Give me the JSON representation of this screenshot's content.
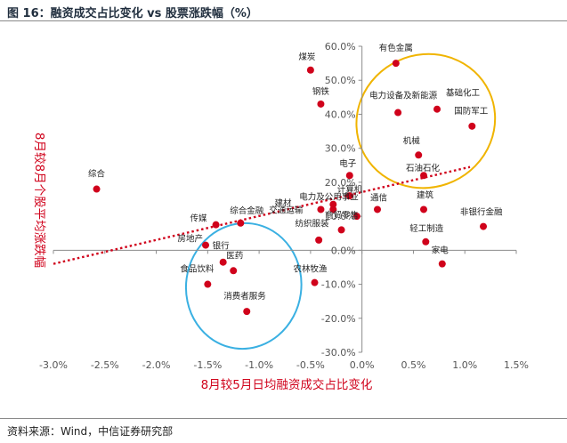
{
  "figure": {
    "title": "图 16：融资成交占比变化 vs 股票涨跌幅（%）",
    "source": "资料来源：Wind，中信证券研究部"
  },
  "chart_data": {
    "type": "scatter",
    "title": "",
    "xlabel": "8月较5月日均融资成交占比变化",
    "ylabel": "8月较8月个股平均涨跌幅",
    "xlim": [
      -3.0,
      1.5
    ],
    "ylim": [
      -30.0,
      60.0
    ],
    "x_ticks": [
      "-3.0%",
      "-2.5%",
      "-2.0%",
      "-1.5%",
      "-1.0%",
      "-0.5%",
      "0.0%",
      "0.5%",
      "1.0%",
      "1.5%"
    ],
    "y_ticks": [
      "60.0%",
      "50.0%",
      "40.0%",
      "30.0%",
      "20.0%",
      "10.0%",
      "0.0%",
      "-10.0%",
      "-20.0%",
      "-30.0%"
    ],
    "point_color": "#d0021b",
    "trendline": {
      "style": "dotted",
      "color": "#d0021b",
      "x": [
        -3.0,
        1.05
      ],
      "y": [
        -4.0,
        24.5
      ]
    },
    "highlights": [
      {
        "name": "upper-right-group",
        "color": "#f0b400",
        "cx": 0.62,
        "cy": 38.0,
        "rx": 0.68,
        "ry": 19.5,
        "angle": -25
      },
      {
        "name": "lower-left-group",
        "color": "#3ab0e2",
        "cx": -1.15,
        "cy": -10.5,
        "rx": 0.56,
        "ry": 18.5,
        "angle": 8
      }
    ],
    "points": [
      {
        "label": "有色金属",
        "x": 0.33,
        "y": 55.0
      },
      {
        "label": "煤炭",
        "x": -0.5,
        "y": 53.0
      },
      {
        "label": "钢铁",
        "x": -0.4,
        "y": 43.0
      },
      {
        "label": "电力设备及新能源",
        "x": 0.35,
        "y": 40.5
      },
      {
        "label": "基础化工",
        "x": 0.73,
        "y": 41.5
      },
      {
        "label": "国防军工",
        "x": 1.07,
        "y": 36.5
      },
      {
        "label": "机械",
        "x": 0.55,
        "y": 28.0
      },
      {
        "label": "石油石化",
        "x": 0.6,
        "y": 22.0
      },
      {
        "label": "电子",
        "x": -0.12,
        "y": 22.0
      },
      {
        "label": "综合",
        "x": -2.58,
        "y": 18.0
      },
      {
        "label": "计算机",
        "x": -0.12,
        "y": 16.0
      },
      {
        "label": "建材",
        "x": -0.4,
        "y": 12.0
      },
      {
        "label": "电力及公用事业",
        "x": -0.28,
        "y": 13.5
      },
      {
        "label": "传媒",
        "x": -1.42,
        "y": 7.5
      },
      {
        "label": "综合金融",
        "x": -1.18,
        "y": 8.0
      },
      {
        "label": "房地产",
        "x": -1.52,
        "y": 1.5
      },
      {
        "label": "交通运输",
        "x": -0.28,
        "y": 12.0
      },
      {
        "label": "商贸零售",
        "x": -0.05,
        "y": 10.0
      },
      {
        "label": "纺织服装",
        "x": -0.2,
        "y": 6.0
      },
      {
        "label": "通信",
        "x": 0.15,
        "y": 12.0
      },
      {
        "label": "建筑",
        "x": 0.6,
        "y": 12.0
      },
      {
        "label": "非银行金融",
        "x": 1.18,
        "y": 7.0
      },
      {
        "label": "轻工制造",
        "x": 0.62,
        "y": 2.5
      },
      {
        "label": "家电",
        "x": 0.78,
        "y": -4.0
      },
      {
        "label": "银行",
        "x": -1.35,
        "y": -3.5
      },
      {
        "label": "医药",
        "x": -1.25,
        "y": -6.0
      },
      {
        "label": "食品饮料",
        "x": -1.5,
        "y": -10.0
      },
      {
        "label": "农林牧渔",
        "x": -0.46,
        "y": -9.5
      },
      {
        "label": "消费者服务",
        "x": -1.12,
        "y": -18.0
      },
      {
        "label": "",
        "x": -0.42,
        "y": 3.0
      }
    ]
  }
}
